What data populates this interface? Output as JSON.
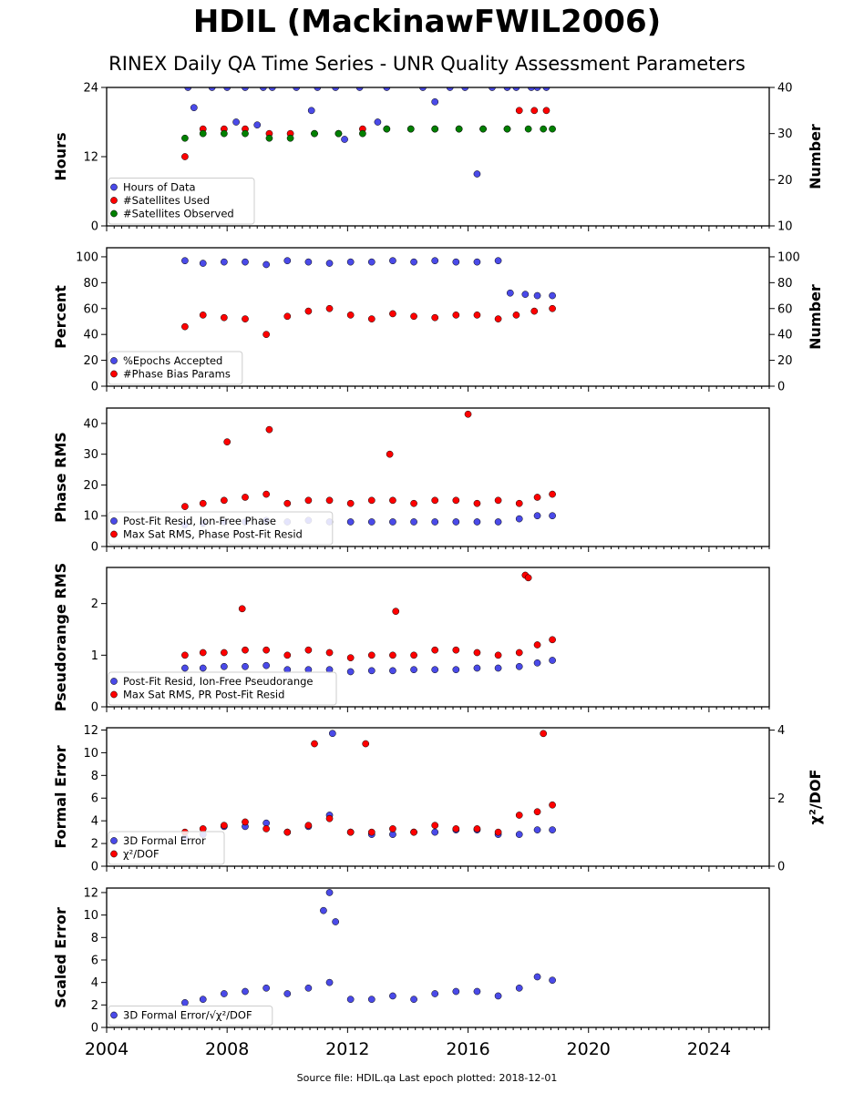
{
  "title": "HDIL (MackinawFWIL2006)",
  "subtitle": "RINEX Daily QA Time Series - UNR Quality Assessment Parameters",
  "footer": "Source file: HDIL.qa Last epoch plotted: 2018-12-01",
  "colors": {
    "blue": "#4a4ae8",
    "red": "#ff0000",
    "green": "#008000",
    "edge": "#000000"
  },
  "chart_data": [
    {
      "type": "scatter",
      "ylabel": "Hours",
      "right_ylabel": "Number",
      "xlim": [
        2004,
        2026
      ],
      "ylim": [
        0,
        24
      ],
      "yticks": [
        0,
        12,
        24
      ],
      "right_ylim": [
        10,
        40
      ],
      "right_yticks": [
        10,
        20,
        30,
        40
      ],
      "legend": "bottom-left",
      "series": [
        {
          "name": "Hours of Data",
          "color": "blue",
          "axis": "left",
          "x": [
            2006.7,
            2007.5,
            2008.0,
            2008.6,
            2009.2,
            2009.5,
            2010.3,
            2011.0,
            2011.6,
            2012.4,
            2013.3,
            2014.5,
            2015.4,
            2015.9,
            2016.8,
            2017.6,
            2018.1,
            2018.6,
            2006.9,
            2008.3,
            2009.0,
            2010.8,
            2011.9,
            2013.0,
            2014.9,
            2016.3,
            2017.3,
            2018.3
          ],
          "y": [
            24,
            24,
            24,
            24,
            24,
            24,
            24,
            24,
            24,
            24,
            24,
            24,
            24,
            24,
            24,
            24,
            24,
            24,
            20.5,
            18.0,
            17.5,
            20.0,
            15.0,
            18.0,
            21.5,
            9.0,
            24,
            24
          ]
        },
        {
          "name": "#Satellites Used",
          "color": "red",
          "axis": "right",
          "x": [
            2006.6,
            2007.2,
            2007.9,
            2008.6,
            2009.4,
            2010.1,
            2010.9,
            2011.7,
            2012.5,
            2013.3,
            2014.1,
            2014.9,
            2015.7,
            2016.5,
            2017.3,
            2017.7,
            2018.2,
            2018.6
          ],
          "y": [
            25,
            31,
            31,
            31,
            30,
            30,
            30,
            30,
            31,
            31,
            31,
            31,
            31,
            31,
            31,
            35,
            35,
            35
          ]
        },
        {
          "name": "#Satellites Observed",
          "color": "green",
          "axis": "right",
          "x": [
            2006.6,
            2007.2,
            2007.9,
            2008.6,
            2009.4,
            2010.1,
            2010.9,
            2011.7,
            2012.5,
            2013.3,
            2014.1,
            2014.9,
            2015.7,
            2016.5,
            2017.3,
            2018.0,
            2018.5,
            2018.8
          ],
          "y": [
            29,
            30,
            30,
            30,
            29,
            29,
            30,
            30,
            30,
            31,
            31,
            31,
            31,
            31,
            31,
            31,
            31,
            31
          ]
        }
      ]
    },
    {
      "type": "scatter",
      "ylabel": "Percent",
      "right_ylabel": "Number",
      "xlim": [
        2004,
        2026
      ],
      "ylim": [
        0,
        107
      ],
      "yticks": [
        0,
        20,
        40,
        60,
        80,
        100
      ],
      "right_ylim": [
        0,
        107
      ],
      "right_yticks": [
        0,
        20,
        40,
        60,
        80,
        100
      ],
      "legend": "bottom-left",
      "series": [
        {
          "name": "%Epochs Accepted",
          "color": "blue",
          "axis": "left",
          "x": [
            2006.6,
            2007.2,
            2007.9,
            2008.6,
            2009.3,
            2010.0,
            2010.7,
            2011.4,
            2012.1,
            2012.8,
            2013.5,
            2014.2,
            2014.9,
            2015.6,
            2016.3,
            2017.0,
            2017.4,
            2017.9,
            2018.3,
            2018.8
          ],
          "y": [
            97,
            95,
            96,
            96,
            94,
            97,
            96,
            95,
            96,
            96,
            97,
            96,
            97,
            96,
            96,
            97,
            72,
            71,
            70,
            70
          ]
        },
        {
          "name": "#Phase Bias Params",
          "color": "red",
          "axis": "right",
          "x": [
            2006.6,
            2007.2,
            2007.9,
            2008.6,
            2009.3,
            2010.0,
            2010.7,
            2011.4,
            2012.1,
            2012.8,
            2013.5,
            2014.2,
            2014.9,
            2015.6,
            2016.3,
            2017.0,
            2017.6,
            2018.2,
            2018.8
          ],
          "y": [
            46,
            55,
            53,
            52,
            40,
            54,
            58,
            60,
            55,
            52,
            56,
            54,
            53,
            55,
            55,
            52,
            55,
            58,
            60
          ]
        }
      ]
    },
    {
      "type": "scatter",
      "ylabel": "Phase RMS",
      "xlim": [
        2004,
        2026
      ],
      "ylim": [
        0,
        45
      ],
      "yticks": [
        0,
        10,
        20,
        30,
        40
      ],
      "legend": "bottom-left",
      "series": [
        {
          "name": "Post-Fit Resid, Ion-Free Phase",
          "color": "blue",
          "x": [
            2006.6,
            2007.2,
            2007.9,
            2008.6,
            2009.3,
            2010.0,
            2010.7,
            2011.4,
            2012.1,
            2012.8,
            2013.5,
            2014.2,
            2014.9,
            2015.6,
            2016.3,
            2017.0,
            2017.7,
            2018.3,
            2018.8
          ],
          "y": [
            7,
            7.5,
            8,
            8,
            8.5,
            8,
            8.5,
            8,
            8,
            8,
            8,
            8,
            8,
            8,
            8,
            8,
            9,
            10,
            10
          ]
        },
        {
          "name": "Max Sat RMS, Phase Post-Fit Resid",
          "color": "red",
          "x": [
            2006.6,
            2007.2,
            2007.9,
            2008.6,
            2009.3,
            2010.0,
            2010.7,
            2011.4,
            2012.1,
            2012.8,
            2013.5,
            2014.2,
            2014.9,
            2015.6,
            2016.3,
            2016.0,
            2017.0,
            2017.7,
            2018.3,
            2018.8,
            2008.0,
            2009.4,
            2013.4
          ],
          "y": [
            13,
            14,
            15,
            16,
            17,
            14,
            15,
            15,
            14,
            15,
            15,
            14,
            15,
            15,
            14,
            43,
            15,
            14,
            16,
            17,
            34,
            38,
            30
          ]
        }
      ]
    },
    {
      "type": "scatter",
      "ylabel": "Pseudorange RMS",
      "xlim": [
        2004,
        2026
      ],
      "ylim": [
        0,
        2.7
      ],
      "yticks": [
        0,
        1,
        2
      ],
      "legend": "bottom-left",
      "series": [
        {
          "name": "Post-Fit Resid, Ion-Free Pseudorange",
          "color": "blue",
          "x": [
            2006.6,
            2007.2,
            2007.9,
            2008.6,
            2009.3,
            2010.0,
            2010.7,
            2011.4,
            2012.1,
            2012.8,
            2013.5,
            2014.2,
            2014.9,
            2015.6,
            2016.3,
            2017.0,
            2017.7,
            2018.3,
            2018.8
          ],
          "y": [
            0.75,
            0.75,
            0.78,
            0.78,
            0.8,
            0.72,
            0.72,
            0.72,
            0.68,
            0.7,
            0.7,
            0.72,
            0.72,
            0.72,
            0.75,
            0.75,
            0.78,
            0.85,
            0.9
          ]
        },
        {
          "name": "Max Sat RMS, PR Post-Fit Resid",
          "color": "red",
          "x": [
            2006.6,
            2007.2,
            2007.9,
            2008.6,
            2009.3,
            2010.0,
            2010.7,
            2011.4,
            2012.1,
            2012.8,
            2013.5,
            2014.2,
            2014.9,
            2015.6,
            2016.3,
            2017.0,
            2017.7,
            2018.3,
            2018.8,
            2017.9,
            2018.0,
            2008.5,
            2013.6
          ],
          "y": [
            1.0,
            1.05,
            1.05,
            1.1,
            1.1,
            1.0,
            1.1,
            1.05,
            0.95,
            1.0,
            1.0,
            1.0,
            1.1,
            1.1,
            1.05,
            1.0,
            1.05,
            1.2,
            1.3,
            2.55,
            2.5,
            1.9,
            1.85
          ]
        }
      ]
    },
    {
      "type": "scatter",
      "ylabel": "Formal Error",
      "right_ylabel": "χ²/DOF",
      "xlim": [
        2004,
        2026
      ],
      "ylim": [
        0,
        12.2
      ],
      "yticks": [
        0,
        2,
        4,
        6,
        8,
        10,
        12
      ],
      "right_ylim": [
        0,
        4.07
      ],
      "right_yticks": [
        0,
        2,
        4
      ],
      "legend": "bottom-left",
      "series": [
        {
          "name": "3D Formal Error",
          "color": "blue",
          "axis": "left",
          "x": [
            2006.6,
            2007.2,
            2007.9,
            2008.6,
            2009.3,
            2010.0,
            2010.7,
            2011.4,
            2012.1,
            2012.8,
            2013.5,
            2014.2,
            2014.9,
            2015.6,
            2016.3,
            2017.0,
            2017.7,
            2018.3,
            2018.8,
            2011.5
          ],
          "y": [
            2.5,
            2.8,
            3.5,
            3.5,
            3.8,
            3.0,
            3.5,
            4.5,
            3.0,
            2.8,
            2.8,
            3.0,
            3.0,
            3.2,
            3.2,
            2.8,
            2.8,
            3.2,
            3.2,
            11.7
          ]
        },
        {
          "name": "χ²/DOF",
          "color": "red",
          "axis": "right",
          "x": [
            2006.6,
            2007.2,
            2007.9,
            2008.6,
            2009.3,
            2010.0,
            2010.7,
            2011.4,
            2012.1,
            2012.8,
            2013.5,
            2014.2,
            2014.9,
            2015.6,
            2016.3,
            2017.0,
            2017.7,
            2018.3,
            2018.8,
            2010.9,
            2012.6,
            2018.5
          ],
          "y": [
            1.0,
            1.1,
            1.2,
            1.3,
            1.1,
            1.0,
            1.2,
            1.4,
            1.0,
            1.0,
            1.1,
            1.0,
            1.2,
            1.1,
            1.1,
            1.0,
            1.5,
            1.6,
            1.8,
            3.6,
            3.6,
            3.9
          ]
        }
      ]
    },
    {
      "type": "scatter",
      "ylabel": "Scaled Error",
      "xlim": [
        2004,
        2026
      ],
      "ylim": [
        0,
        12.4
      ],
      "yticks": [
        0,
        2,
        4,
        6,
        8,
        10,
        12
      ],
      "xticks": [
        2004,
        2008,
        2012,
        2016,
        2020,
        2024
      ],
      "legend": "bottom-left",
      "series": [
        {
          "name": "3D Formal Error/√χ²/DOF",
          "color": "blue",
          "x": [
            2006.6,
            2007.2,
            2007.9,
            2008.6,
            2009.3,
            2010.0,
            2010.7,
            2011.4,
            2012.1,
            2012.8,
            2013.5,
            2014.2,
            2014.9,
            2015.6,
            2016.3,
            2017.0,
            2017.7,
            2018.3,
            2018.8,
            2011.4,
            2011.2,
            2011.6
          ],
          "y": [
            2.2,
            2.5,
            3.0,
            3.2,
            3.5,
            3.0,
            3.5,
            4.0,
            2.5,
            2.5,
            2.8,
            2.5,
            3.0,
            3.2,
            3.2,
            2.8,
            3.5,
            4.5,
            4.2,
            12.0,
            10.4,
            9.4
          ]
        }
      ]
    }
  ]
}
